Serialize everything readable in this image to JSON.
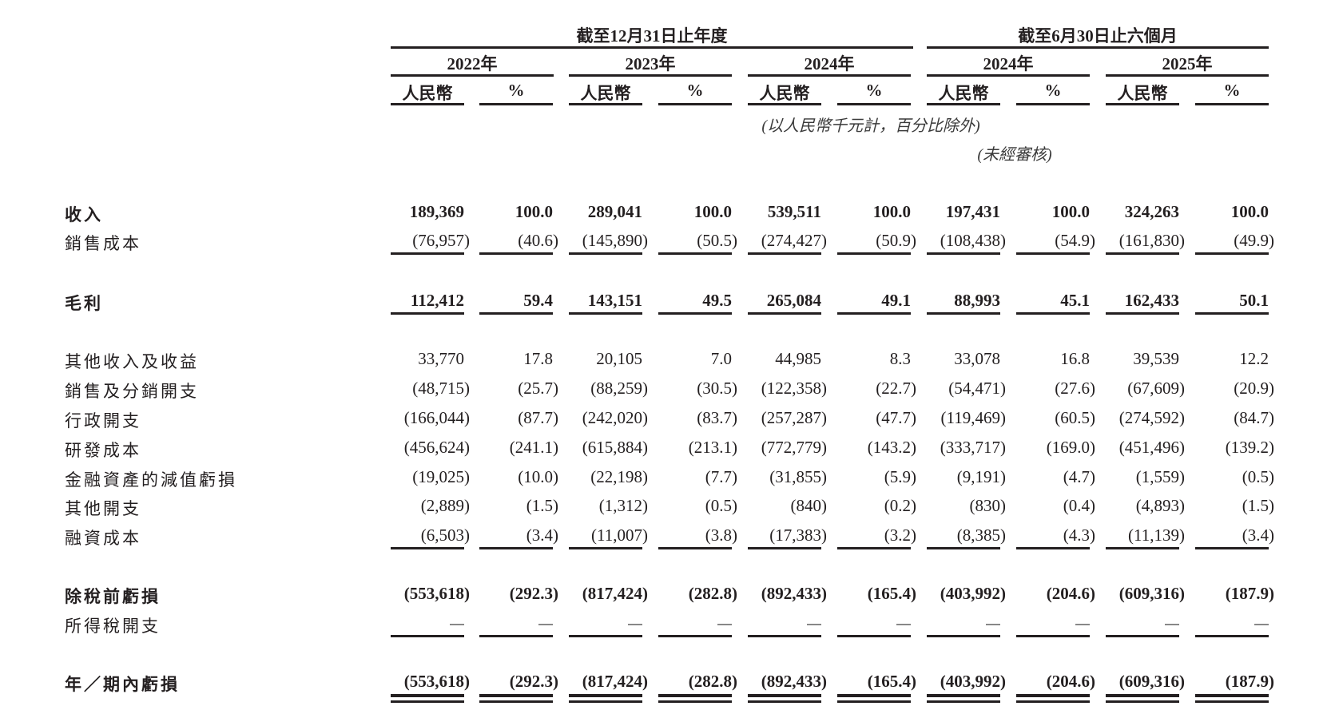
{
  "header": {
    "group_full_year": "截至12月31日止年度",
    "group_six_months": "截至6月30日止六個月",
    "years": [
      "2022年",
      "2023年",
      "2024年",
      "2024年",
      "2025年"
    ],
    "currency_label": "人民幣",
    "percent_label": "%",
    "unit_note": "(以人民幣千元計，百分比除外)",
    "unaudited_note": "(未經審核)"
  },
  "rows": [
    {
      "label": "收入",
      "bold": true,
      "values": [
        "189,369",
        "100.0",
        "289,041",
        "100.0",
        "539,511",
        "100.0",
        "197,431",
        "100.0",
        "324,263",
        "100.0"
      ]
    },
    {
      "label": "銷售成本",
      "bold": false,
      "values": [
        "(76,957)",
        "(40.6)",
        "(145,890)",
        "(50.5)",
        "(274,427)",
        "(50.9)",
        "(108,438)",
        "(54.9)",
        "(161,830)",
        "(49.9)"
      ]
    },
    {
      "label": "毛利",
      "bold": true,
      "values": [
        "112,412",
        "59.4",
        "143,151",
        "49.5",
        "265,084",
        "49.1",
        "88,993",
        "45.1",
        "162,433",
        "50.1"
      ]
    },
    {
      "label": "其他收入及收益",
      "bold": false,
      "values": [
        "33,770",
        "17.8",
        "20,105",
        "7.0",
        "44,985",
        "8.3",
        "33,078",
        "16.8",
        "39,539",
        "12.2"
      ]
    },
    {
      "label": "銷售及分銷開支",
      "bold": false,
      "values": [
        "(48,715)",
        "(25.7)",
        "(88,259)",
        "(30.5)",
        "(122,358)",
        "(22.7)",
        "(54,471)",
        "(27.6)",
        "(67,609)",
        "(20.9)"
      ]
    },
    {
      "label": "行政開支",
      "bold": false,
      "values": [
        "(166,044)",
        "(87.7)",
        "(242,020)",
        "(83.7)",
        "(257,287)",
        "(47.7)",
        "(119,469)",
        "(60.5)",
        "(274,592)",
        "(84.7)"
      ]
    },
    {
      "label": "研發成本",
      "bold": false,
      "values": [
        "(456,624)",
        "(241.1)",
        "(615,884)",
        "(213.1)",
        "(772,779)",
        "(143.2)",
        "(333,717)",
        "(169.0)",
        "(451,496)",
        "(139.2)"
      ]
    },
    {
      "label": "金融資產的減值虧損",
      "bold": false,
      "values": [
        "(19,025)",
        "(10.0)",
        "(22,198)",
        "(7.7)",
        "(31,855)",
        "(5.9)",
        "(9,191)",
        "(4.7)",
        "(1,559)",
        "(0.5)"
      ]
    },
    {
      "label": "其他開支",
      "bold": false,
      "values": [
        "(2,889)",
        "(1.5)",
        "(1,312)",
        "(0.5)",
        "(840)",
        "(0.2)",
        "(830)",
        "(0.4)",
        "(4,893)",
        "(1.5)"
      ]
    },
    {
      "label": "融資成本",
      "bold": false,
      "values": [
        "(6,503)",
        "(3.4)",
        "(11,007)",
        "(3.8)",
        "(17,383)",
        "(3.2)",
        "(8,385)",
        "(4.3)",
        "(11,139)",
        "(3.4)"
      ]
    },
    {
      "label": "除稅前虧損",
      "bold": true,
      "values": [
        "(553,618)",
        "(292.3)",
        "(817,424)",
        "(282.8)",
        "(892,433)",
        "(165.4)",
        "(403,992)",
        "(204.6)",
        "(609,316)",
        "(187.9)"
      ]
    },
    {
      "label": "所得稅開支",
      "bold": false,
      "values": [
        "—",
        "—",
        "—",
        "—",
        "—",
        "—",
        "—",
        "—",
        "—",
        "—"
      ]
    },
    {
      "label": "年／期內虧損",
      "bold": true,
      "values": [
        "(553,618)",
        "(292.3)",
        "(817,424)",
        "(282.8)",
        "(892,433)",
        "(165.4)",
        "(403,992)",
        "(204.6)",
        "(609,316)",
        "(187.9)"
      ]
    }
  ]
}
